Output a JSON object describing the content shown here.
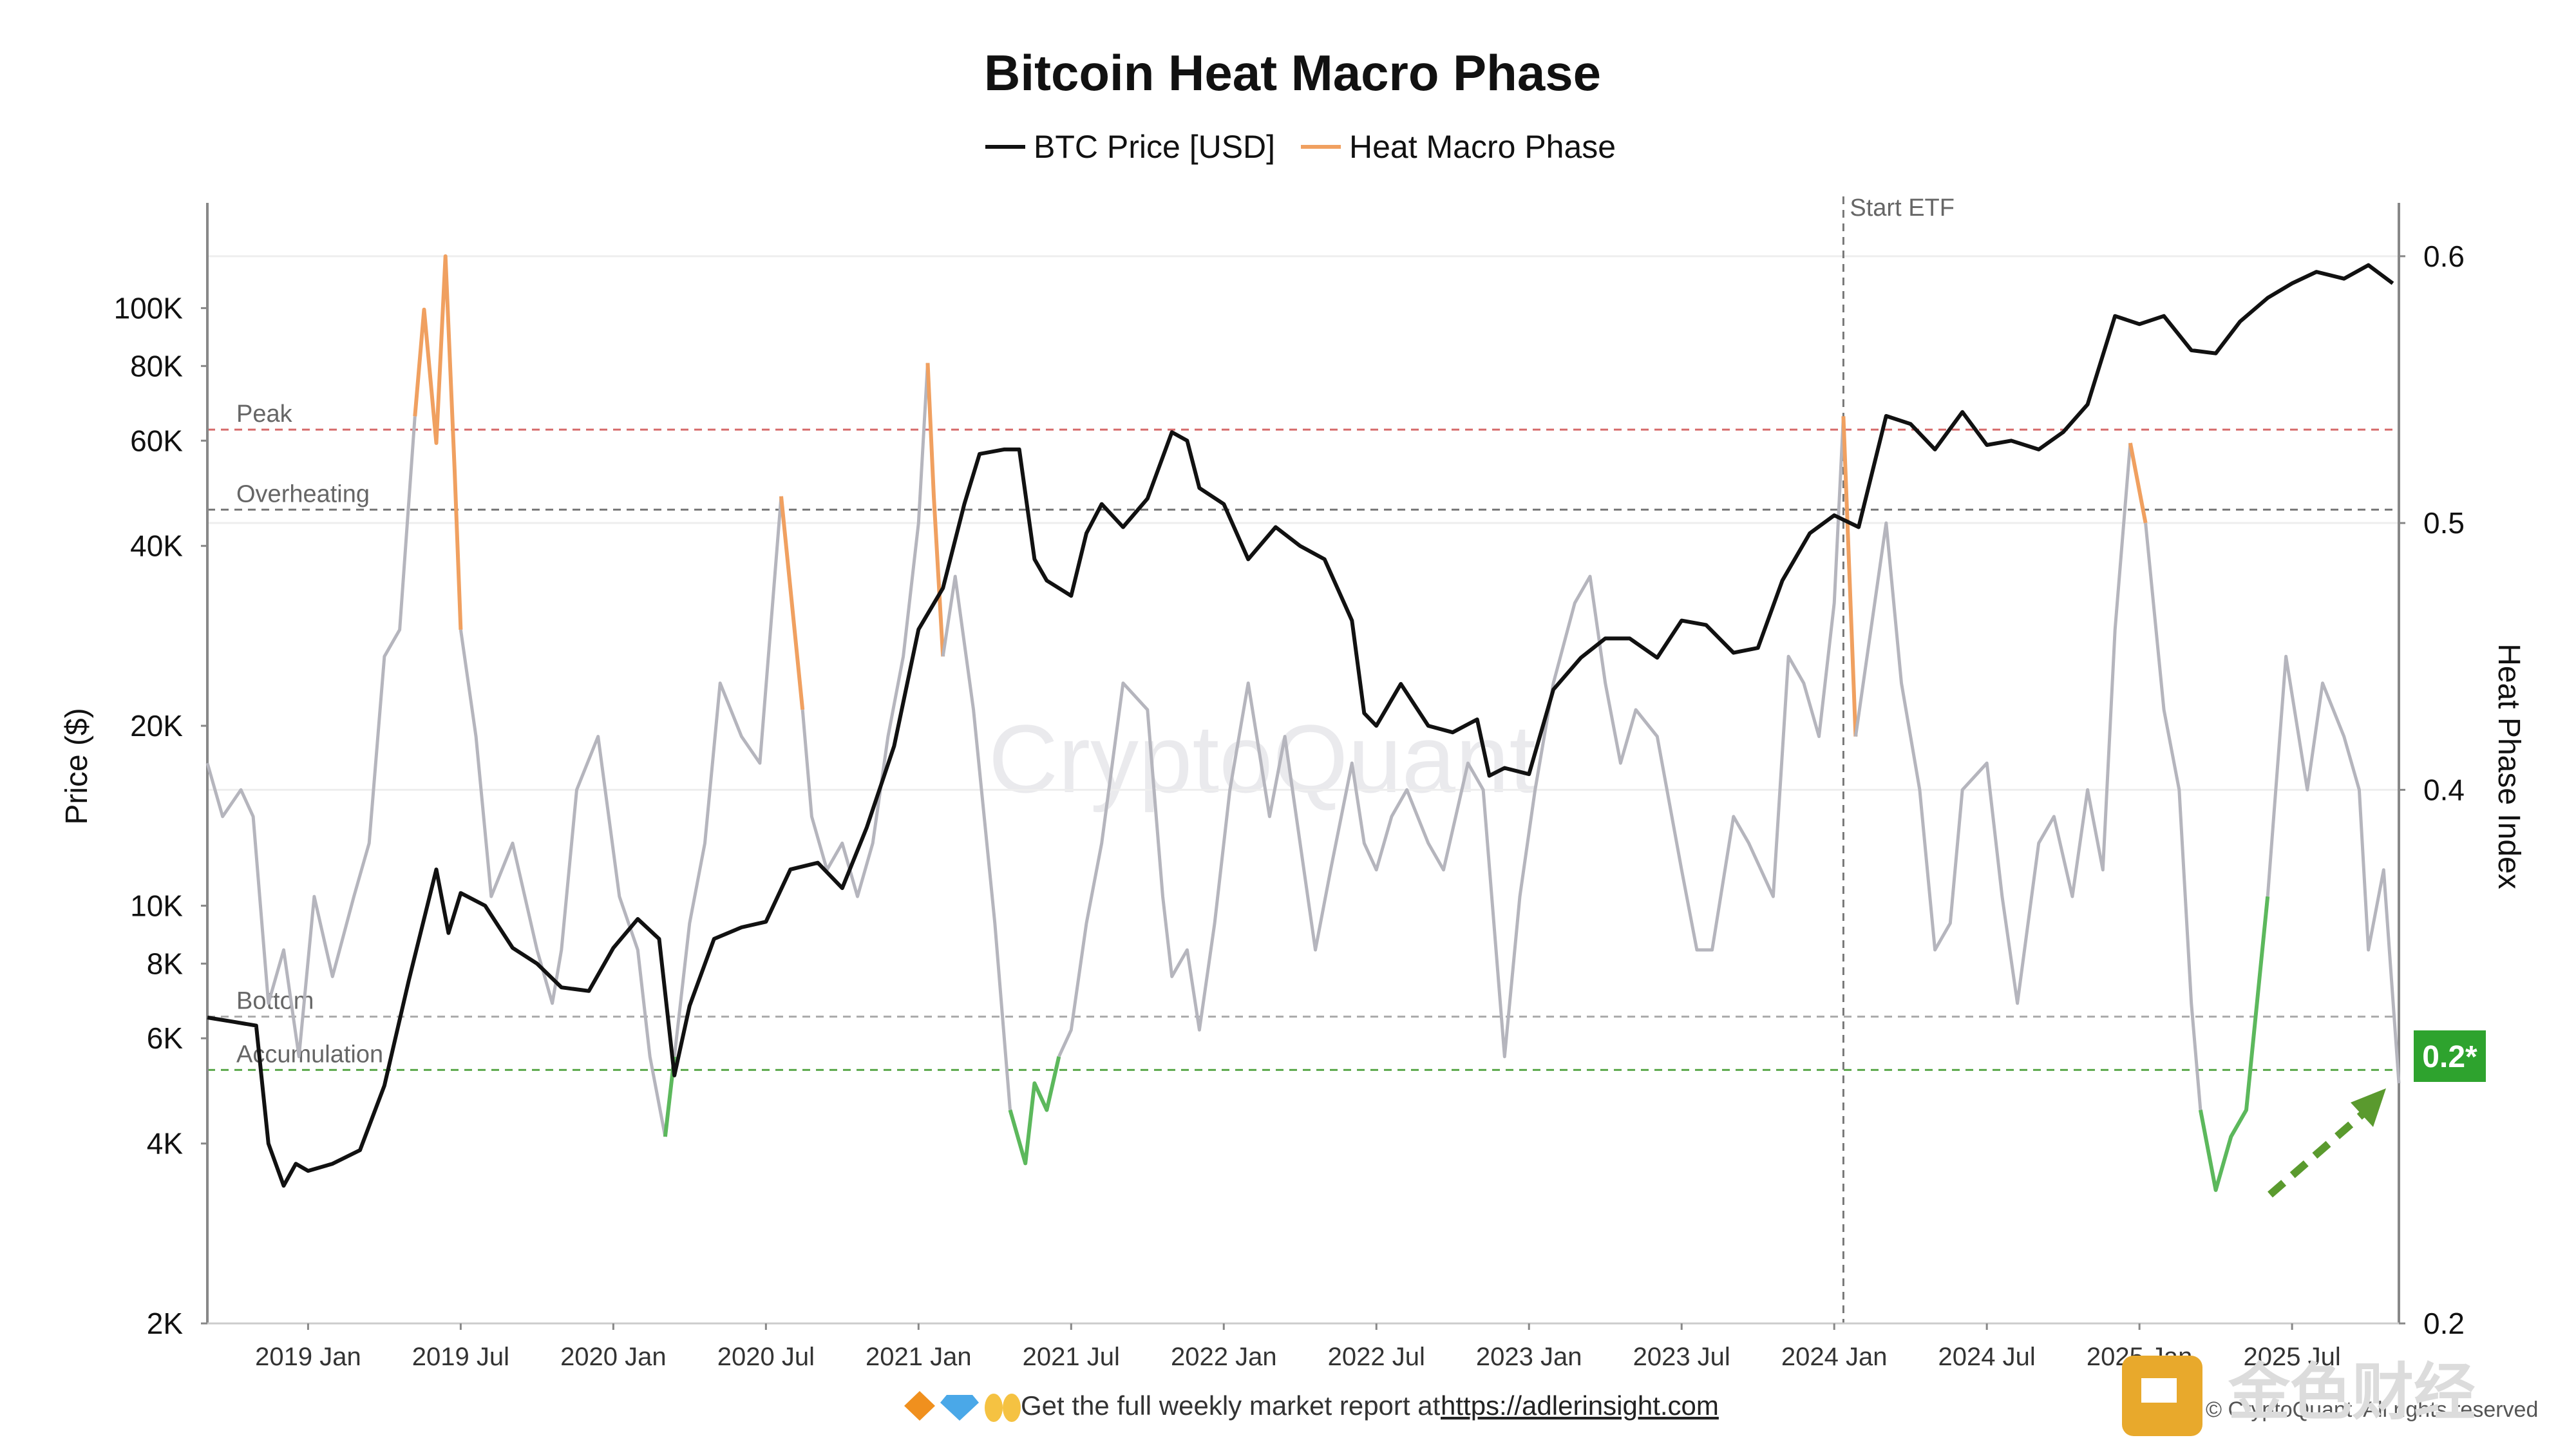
{
  "chart_data": {
    "type": "line",
    "title": "Bitcoin Heat Macro Phase",
    "legend": [
      {
        "name": "BTC Price [USD]",
        "color": "#111111"
      },
      {
        "name": "Heat Macro Phase",
        "color": "#f0a060"
      }
    ],
    "ylabel_left": "Price ($)",
    "ylabel_right": "Heat Phase Index",
    "x_ticks": [
      "2019 Jan",
      "2019 Jul",
      "2020 Jan",
      "2020 Jul",
      "2021 Jan",
      "2021 Jul",
      "2022 Jan",
      "2022 Jul",
      "2023 Jan",
      "2023 Jul",
      "2024 Jan",
      "2024 Jul",
      "2025 Jan",
      "2025 Jul"
    ],
    "y_left_ticks": [
      "2K",
      "4K",
      "6K",
      "8K",
      "10K",
      "20K",
      "40K",
      "60K",
      "80K",
      "100K"
    ],
    "y_left_values": [
      2000,
      4000,
      6000,
      8000,
      10000,
      20000,
      40000,
      60000,
      80000,
      100000
    ],
    "y_left_range": [
      2000,
      150000
    ],
    "y_right_ticks": [
      "0.2",
      "0.4",
      "0.5",
      "0.6"
    ],
    "y_right_values": [
      0.2,
      0.4,
      0.5,
      0.6
    ],
    "y_right_range": [
      0.2,
      0.62
    ],
    "x_range_years": [
      2018.67,
      2025.85
    ],
    "reference_lines": [
      {
        "name": "Peak",
        "value": 0.535,
        "color": "#d66a6a"
      },
      {
        "name": "Overheating",
        "value": 0.505,
        "color": "#777777"
      },
      {
        "name": "Bottom",
        "value": 0.315,
        "color": "#aaaaaa"
      },
      {
        "name": "Accumulation",
        "value": 0.295,
        "color": "#5aa84a"
      }
    ],
    "event": {
      "label": "Start ETF",
      "x": 2024.03
    },
    "current_value_badge": "0.2*",
    "btc_price": {
      "x": [
        2018.67,
        2018.75,
        2018.83,
        2018.87,
        2018.92,
        2018.96,
        2019.0,
        2019.08,
        2019.17,
        2019.25,
        2019.33,
        2019.42,
        2019.46,
        2019.5,
        2019.58,
        2019.67,
        2019.75,
        2019.83,
        2019.92,
        2020.0,
        2020.08,
        2020.15,
        2020.2,
        2020.25,
        2020.33,
        2020.42,
        2020.5,
        2020.58,
        2020.67,
        2020.75,
        2020.83,
        2020.92,
        2021.0,
        2021.08,
        2021.15,
        2021.2,
        2021.28,
        2021.33,
        2021.38,
        2021.42,
        2021.5,
        2021.55,
        2021.6,
        2021.67,
        2021.75,
        2021.83,
        2021.88,
        2021.92,
        2022.0,
        2022.08,
        2022.17,
        2022.25,
        2022.33,
        2022.42,
        2022.46,
        2022.5,
        2022.58,
        2022.67,
        2022.75,
        2022.83,
        2022.87,
        2022.92,
        2023.0,
        2023.08,
        2023.17,
        2023.25,
        2023.33,
        2023.42,
        2023.5,
        2023.58,
        2023.67,
        2023.75,
        2023.83,
        2023.92,
        2024.0,
        2024.08,
        2024.17,
        2024.25,
        2024.33,
        2024.42,
        2024.5,
        2024.58,
        2024.67,
        2024.75,
        2024.83,
        2024.92,
        2025.0,
        2025.08,
        2025.17,
        2025.25,
        2025.33,
        2025.42,
        2025.5,
        2025.58,
        2025.67,
        2025.75,
        2025.83
      ],
      "y": [
        6500,
        6400,
        6300,
        4000,
        3400,
        3700,
        3600,
        3700,
        3900,
        5000,
        7500,
        11500,
        9000,
        10500,
        10000,
        8500,
        8000,
        7300,
        7200,
        8500,
        9500,
        8800,
        5200,
        6800,
        8800,
        9200,
        9400,
        11500,
        11800,
        10700,
        13500,
        18500,
        29000,
        34000,
        47000,
        57000,
        58000,
        58000,
        38000,
        35000,
        33000,
        42000,
        47000,
        43000,
        48000,
        62000,
        60000,
        50000,
        47000,
        38000,
        43000,
        40000,
        38000,
        30000,
        21000,
        20000,
        23500,
        20000,
        19500,
        20500,
        16500,
        17000,
        16600,
        23000,
        26000,
        28000,
        28000,
        26000,
        30000,
        29500,
        26500,
        27000,
        35000,
        42000,
        45000,
        43000,
        66000,
        64000,
        58000,
        67000,
        59000,
        60000,
        58000,
        62000,
        69000,
        97000,
        94000,
        97000,
        85000,
        84000,
        95000,
        104000,
        110000,
        115000,
        112000,
        118000,
        110000
      ]
    },
    "heat_phase": {
      "x": [
        2018.67,
        2018.72,
        2018.78,
        2018.82,
        2018.87,
        2018.92,
        2018.97,
        2019.02,
        2019.08,
        2019.15,
        2019.2,
        2019.25,
        2019.3,
        2019.35,
        2019.38,
        2019.42,
        2019.45,
        2019.48,
        2019.5,
        2019.55,
        2019.6,
        2019.67,
        2019.75,
        2019.8,
        2019.83,
        2019.88,
        2019.95,
        2020.02,
        2020.08,
        2020.12,
        2020.17,
        2020.2,
        2020.25,
        2020.3,
        2020.35,
        2020.42,
        2020.48,
        2020.55,
        2020.62,
        2020.65,
        2020.7,
        2020.75,
        2020.8,
        2020.85,
        2020.9,
        2020.95,
        2021.0,
        2021.03,
        2021.05,
        2021.08,
        2021.12,
        2021.18,
        2021.25,
        2021.3,
        2021.35,
        2021.38,
        2021.42,
        2021.46,
        2021.5,
        2021.55,
        2021.6,
        2021.67,
        2021.75,
        2021.8,
        2021.83,
        2021.88,
        2021.92,
        2021.97,
        2022.02,
        2022.08,
        2022.15,
        2022.2,
        2022.25,
        2022.3,
        2022.35,
        2022.42,
        2022.46,
        2022.5,
        2022.55,
        2022.6,
        2022.67,
        2022.72,
        2022.8,
        2022.85,
        2022.92,
        2022.97,
        2023.02,
        2023.08,
        2023.15,
        2023.2,
        2023.25,
        2023.3,
        2023.35,
        2023.42,
        2023.5,
        2023.55,
        2023.6,
        2023.67,
        2023.72,
        2023.8,
        2023.85,
        2023.9,
        2023.95,
        2024.0,
        2024.03,
        2024.07,
        2024.12,
        2024.17,
        2024.22,
        2024.28,
        2024.33,
        2024.38,
        2024.42,
        2024.5,
        2024.55,
        2024.6,
        2024.67,
        2024.72,
        2024.78,
        2024.83,
        2024.88,
        2024.92,
        2024.97,
        2025.02,
        2025.08,
        2025.13,
        2025.17,
        2025.2,
        2025.25,
        2025.3,
        2025.35,
        2025.42,
        2025.48,
        2025.55,
        2025.6,
        2025.67,
        2025.72,
        2025.75,
        2025.8,
        2025.85
      ],
      "y": [
        0.41,
        0.39,
        0.4,
        0.39,
        0.32,
        0.34,
        0.3,
        0.36,
        0.33,
        0.36,
        0.38,
        0.45,
        0.46,
        0.54,
        0.58,
        0.53,
        0.6,
        0.52,
        0.46,
        0.42,
        0.36,
        0.38,
        0.34,
        0.32,
        0.34,
        0.4,
        0.42,
        0.36,
        0.34,
        0.3,
        0.27,
        0.3,
        0.35,
        0.38,
        0.44,
        0.42,
        0.41,
        0.51,
        0.43,
        0.39,
        0.37,
        0.38,
        0.36,
        0.38,
        0.42,
        0.45,
        0.5,
        0.56,
        0.51,
        0.45,
        0.48,
        0.43,
        0.35,
        0.28,
        0.26,
        0.29,
        0.28,
        0.3,
        0.31,
        0.35,
        0.38,
        0.44,
        0.43,
        0.36,
        0.33,
        0.34,
        0.31,
        0.35,
        0.4,
        0.44,
        0.39,
        0.42,
        0.38,
        0.34,
        0.37,
        0.41,
        0.38,
        0.37,
        0.39,
        0.4,
        0.38,
        0.37,
        0.41,
        0.4,
        0.3,
        0.36,
        0.4,
        0.44,
        0.47,
        0.48,
        0.44,
        0.41,
        0.43,
        0.42,
        0.37,
        0.34,
        0.34,
        0.39,
        0.38,
        0.36,
        0.45,
        0.44,
        0.42,
        0.47,
        0.54,
        0.42,
        0.46,
        0.5,
        0.44,
        0.4,
        0.34,
        0.35,
        0.4,
        0.41,
        0.36,
        0.32,
        0.38,
        0.39,
        0.36,
        0.4,
        0.37,
        0.46,
        0.53,
        0.5,
        0.43,
        0.4,
        0.32,
        0.28,
        0.25,
        0.27,
        0.28,
        0.36,
        0.45,
        0.4,
        0.44,
        0.42,
        0.4,
        0.34,
        0.37,
        0.29
      ]
    },
    "footer_text": "Get the full weekly market report at",
    "footer_link": "https://adlerinsight.com",
    "watermark": "CryptoQuant",
    "copyright": "© CryptoQuant. All rights reserved",
    "corner_brand": "金色财经"
  }
}
